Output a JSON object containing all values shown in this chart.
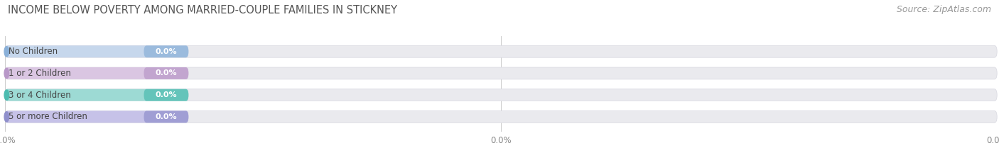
{
  "title": "INCOME BELOW POVERTY AMONG MARRIED-COUPLE FAMILIES IN STICKNEY",
  "source": "Source: ZipAtlas.com",
  "categories": [
    "No Children",
    "1 or 2 Children",
    "3 or 4 Children",
    "5 or more Children"
  ],
  "values": [
    0.0,
    0.0,
    0.0,
    0.0
  ],
  "bar_colors": [
    "#8ab0d8",
    "#b898c8",
    "#4dbcb0",
    "#9090cc"
  ],
  "bar_colors_light": [
    "#c0d4ec",
    "#d8c0e0",
    "#90d8d0",
    "#c0bce8"
  ],
  "background_color": "#ffffff",
  "bar_bg_color": "#eaeaee",
  "bar_bg_color2": "#f0f0f4",
  "title_fontsize": 10.5,
  "source_fontsize": 9,
  "tick_fontsize": 8.5,
  "label_fontsize": 8.5,
  "value_fontsize": 8,
  "figsize": [
    14.06,
    2.33
  ],
  "dpi": 100
}
